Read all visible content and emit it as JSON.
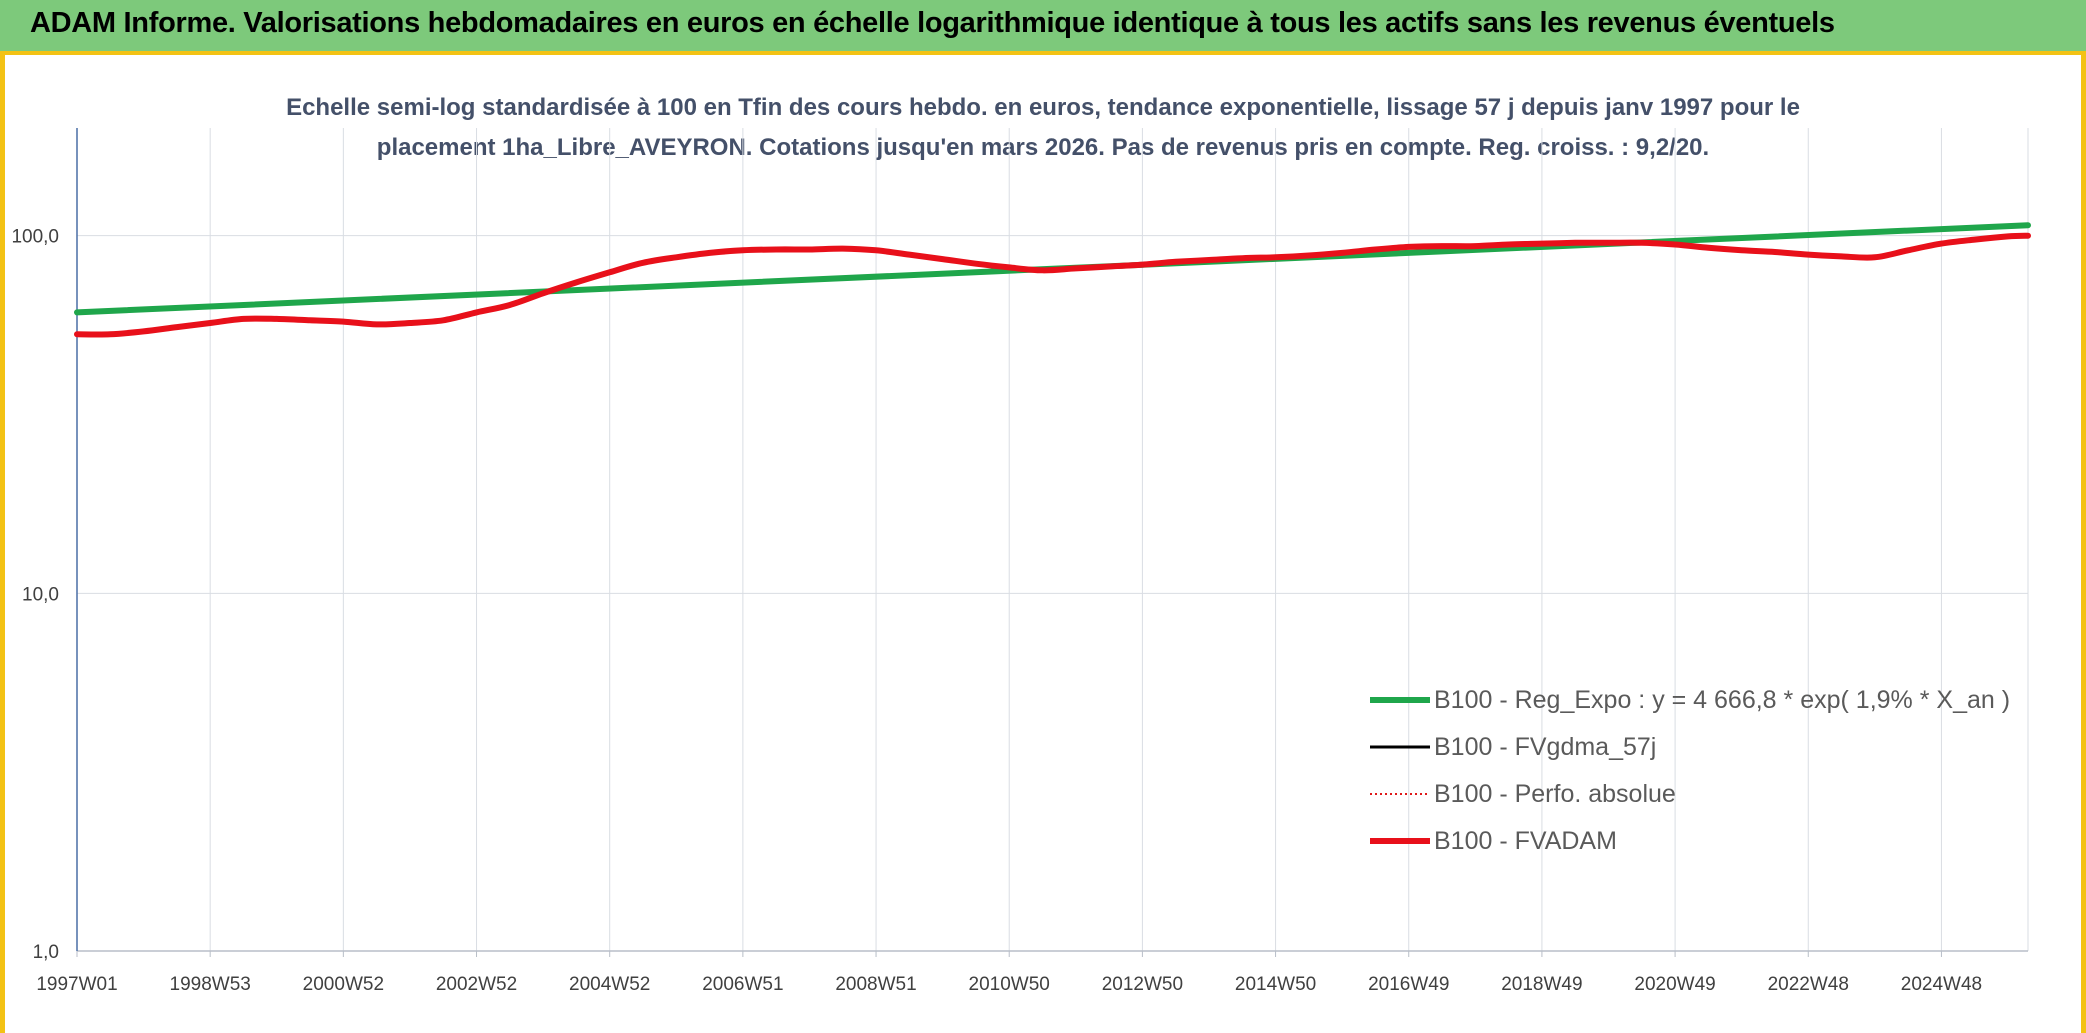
{
  "header": {
    "title": "ADAM Informe. Valorisations hebdomadaires en euros en échelle logarithmique identique à tous les actifs sans les revenus éventuels"
  },
  "chart_data": {
    "type": "line",
    "title_line1": "Echelle semi-log standardisée à 100 en Tfin des cours hebdo. en euros, tendance exponentielle, lissage 57 j depuis janv 1997 pour le",
    "title_line2": "placement 1ha_Libre_AVEYRON. Cotations jusqu'en mars 2026. Pas de revenus pris en compte. Reg. croiss. : 9,2/20.",
    "y_scale": "log",
    "ylim": [
      1,
      200
    ],
    "xlim": [
      1997.0,
      2026.3
    ],
    "grid": true,
    "legend_position": "bottom-right",
    "y_ticks": [
      {
        "value": 1,
        "label": "1,0"
      },
      {
        "value": 10,
        "label": "10,0"
      },
      {
        "value": 100,
        "label": "100,0"
      }
    ],
    "x_ticks": [
      {
        "value": 1997.0,
        "label": "1997W01"
      },
      {
        "value": 1999.0,
        "label": "1998W53"
      },
      {
        "value": 2001.0,
        "label": "2000W52"
      },
      {
        "value": 2003.0,
        "label": "2002W52"
      },
      {
        "value": 2005.0,
        "label": "2004W52"
      },
      {
        "value": 2007.0,
        "label": "2006W51"
      },
      {
        "value": 2009.0,
        "label": "2008W51"
      },
      {
        "value": 2011.0,
        "label": "2010W50"
      },
      {
        "value": 2013.0,
        "label": "2012W50"
      },
      {
        "value": 2015.0,
        "label": "2014W50"
      },
      {
        "value": 2017.0,
        "label": "2016W49"
      },
      {
        "value": 2019.0,
        "label": "2018W49"
      },
      {
        "value": 2021.0,
        "label": "2020W49"
      },
      {
        "value": 2023.0,
        "label": "2022W48"
      },
      {
        "value": 2025.0,
        "label": "2024W48"
      }
    ],
    "series": [
      {
        "name": "B100 - Reg_Expo : y = 4 666,8 * exp( 1,9% *  X_an )",
        "color": "#1fa64b",
        "style": "solid-thick",
        "x": [
          1997.0,
          2026.3
        ],
        "y": [
          61,
          107
        ]
      },
      {
        "name": "B100 - FVgdma_57j",
        "color": "#000000",
        "style": "solid-thin",
        "x": [],
        "y": []
      },
      {
        "name": "B100 - Perfo. absolue",
        "color": "#e0191a",
        "style": "dotted",
        "x": [],
        "y": []
      },
      {
        "name": "B100 - FVADAM",
        "color": "#e8101a",
        "style": "solid-thick",
        "x": [
          1997.0,
          1997.5,
          1998.0,
          1998.5,
          1999.0,
          1999.5,
          2000.0,
          2000.5,
          2001.0,
          2001.5,
          2002.0,
          2002.5,
          2003.0,
          2003.5,
          2004.0,
          2004.5,
          2005.0,
          2005.5,
          2006.0,
          2006.5,
          2007.0,
          2007.5,
          2008.0,
          2008.5,
          2009.0,
          2009.5,
          2010.0,
          2010.5,
          2011.0,
          2011.5,
          2012.0,
          2012.5,
          2013.0,
          2013.5,
          2014.0,
          2014.5,
          2015.0,
          2015.5,
          2016.0,
          2016.5,
          2017.0,
          2017.5,
          2018.0,
          2018.5,
          2019.0,
          2019.5,
          2020.0,
          2020.5,
          2021.0,
          2021.5,
          2022.0,
          2022.5,
          2023.0,
          2023.5,
          2024.0,
          2024.5,
          2025.0,
          2025.5,
          2026.0,
          2026.3
        ],
        "y": [
          53,
          53,
          54,
          55.5,
          57,
          58.5,
          58.5,
          58,
          57.5,
          56.5,
          57,
          58,
          61,
          64,
          69,
          74,
          79,
          84,
          87,
          89.5,
          91,
          91.5,
          91.5,
          92,
          91,
          88.5,
          86,
          83.5,
          81.5,
          80,
          81,
          82,
          83,
          84.5,
          85.5,
          86.5,
          87,
          88,
          89.5,
          91.5,
          93,
          93.5,
          93.5,
          94.5,
          95,
          95.5,
          95.5,
          95.5,
          94.5,
          92.5,
          91,
          90,
          88.5,
          87.5,
          87,
          91,
          95,
          97.5,
          99.5,
          100
        ]
      }
    ]
  }
}
